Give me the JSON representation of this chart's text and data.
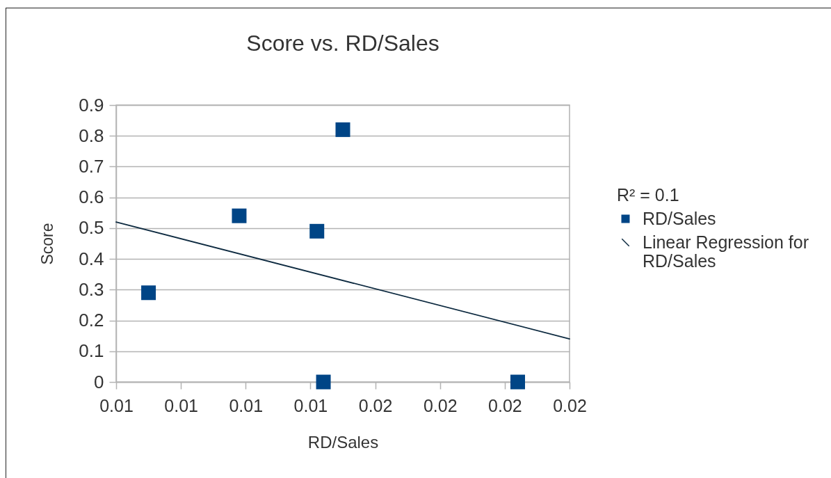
{
  "chart_data": {
    "type": "scatter",
    "title": "Score vs. RD/Sales",
    "xlabel": "RD/Sales",
    "ylabel": "Score",
    "legend_title": "R² = 0.1",
    "series": [
      {
        "name": "RD/Sales",
        "marker": "square",
        "color": "#004586",
        "x": [
          0.0115,
          0.0129,
          0.0141,
          0.0145,
          0.0142,
          0.0172
        ],
        "values": [
          0.29,
          0.54,
          0.49,
          0.82,
          0,
          0
        ]
      },
      {
        "name": "Linear Regression for RD/Sales",
        "type": "line",
        "color": "#0d2a40",
        "x": [
          0.011,
          0.018
        ],
        "values": [
          0.52,
          0.14
        ]
      }
    ],
    "xlim": [
      0.011,
      0.018
    ],
    "xticks": [
      {
        "value": 0.011,
        "label": "0.01"
      },
      {
        "value": 0.012,
        "label": "0.01"
      },
      {
        "value": 0.013,
        "label": "0.01"
      },
      {
        "value": 0.014,
        "label": "0.01"
      },
      {
        "value": 0.015,
        "label": "0.02"
      },
      {
        "value": 0.016,
        "label": "0.02"
      },
      {
        "value": 0.017,
        "label": "0.02"
      },
      {
        "value": 0.018,
        "label": "0.02"
      }
    ],
    "ylim": [
      0,
      0.9
    ],
    "yticks": [
      0,
      0.1,
      0.2,
      0.3,
      0.4,
      0.5,
      0.6,
      0.7,
      0.8,
      0.9
    ],
    "grid": "y",
    "legend": "right"
  }
}
